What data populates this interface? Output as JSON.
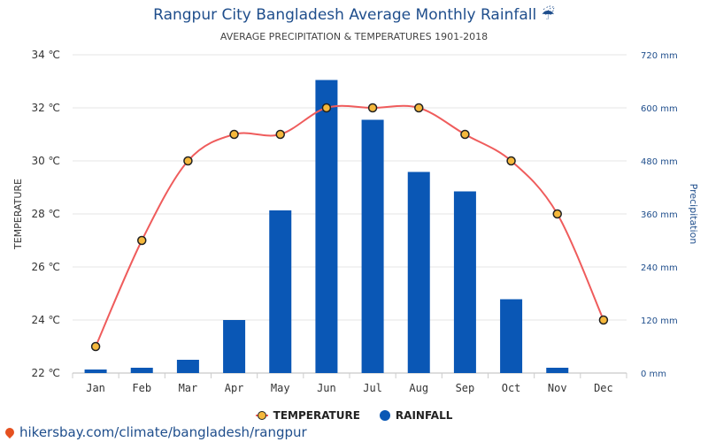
{
  "title": "Rangpur City Bangladesh Average Monthly Rainfall ☔",
  "subtitle": "AVERAGE PRECIPITATION & TEMPERATURES 1901-2018",
  "footer_url": "hikersbay.com/climate/bangladesh/rangpur",
  "colors": {
    "rain_bar": "#0a57b5",
    "temp_line": "#ef5c5c",
    "temp_marker": "#f5b83c",
    "axis_left_text": "#333333",
    "axis_right_text": "#1f4e8c"
  },
  "chart_data": {
    "type": "bar",
    "categories": [
      "Jan",
      "Feb",
      "Mar",
      "Apr",
      "May",
      "Jun",
      "Jul",
      "Aug",
      "Sep",
      "Oct",
      "Nov",
      "Dec"
    ],
    "series": [
      {
        "name": "RAINFALL",
        "type": "bar",
        "axis": "right",
        "values": [
          8,
          12,
          30,
          120,
          368,
          663,
          573,
          455,
          411,
          167,
          12,
          0
        ]
      },
      {
        "name": "TEMPERATURE",
        "type": "line",
        "axis": "left",
        "values": [
          23,
          27,
          30,
          31,
          31,
          32,
          32,
          32,
          31,
          30,
          28,
          24
        ]
      }
    ],
    "ylabel_left": "TEMPERATURE",
    "ylabel_right": "Precipitation",
    "ylim_left": [
      22,
      34
    ],
    "ylim_right": [
      0,
      720
    ],
    "left_ticks": [
      "22 ℃",
      "24 ℃",
      "26 ℃",
      "28 ℃",
      "30 ℃",
      "32 ℃",
      "34 ℃"
    ],
    "right_ticks": [
      "0 mm",
      "120 mm",
      "240 mm",
      "360 mm",
      "480 mm",
      "600 mm",
      "720 mm"
    ],
    "grid": true,
    "legend_position": "bottom-center"
  }
}
